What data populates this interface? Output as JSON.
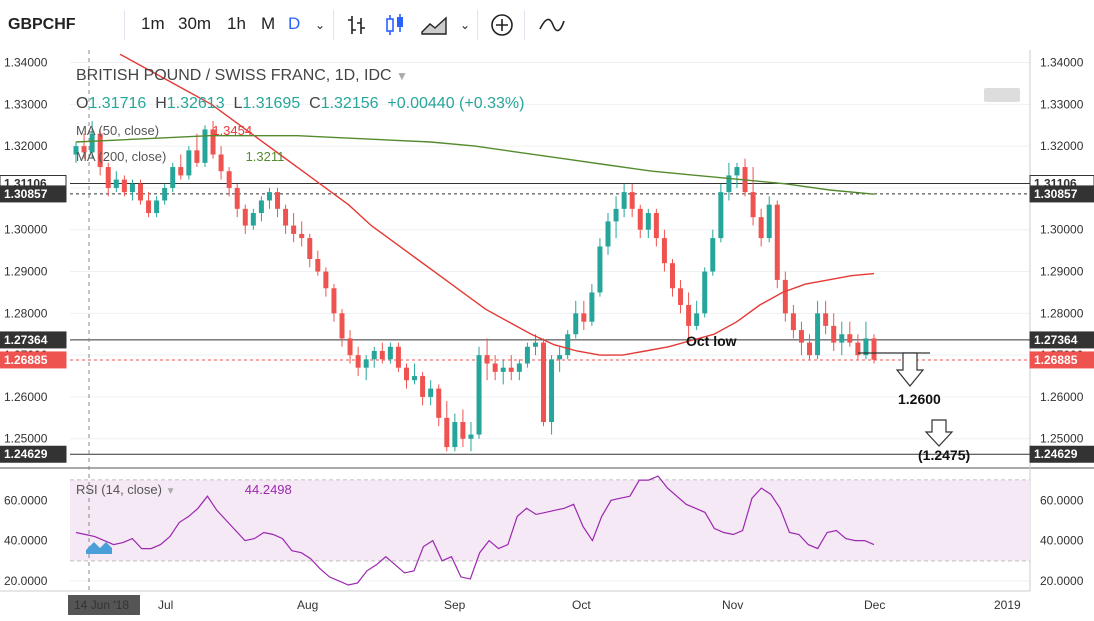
{
  "toolbar": {
    "symbol": "GBPCHF",
    "timeframes": [
      "1m",
      "30m",
      "1h",
      "M",
      "D"
    ],
    "active_timeframe": "D",
    "icons": [
      "chevron-down-icon",
      "bars-icon",
      "candles-icon",
      "area-icon",
      "chevron-down-icon",
      "compare-plus-icon",
      "indicators-icon"
    ]
  },
  "legend": {
    "title": "BRITISH POUND / SWISS FRANC, 1D, IDC",
    "open_label": "O",
    "open": "1.31716",
    "high_label": "H",
    "high": "1.32613",
    "low_label": "L",
    "low": "1.31695",
    "close_label": "C",
    "close": "1.32156",
    "change": "+0.00440 (+0.33%)",
    "ma50_label": "MA (50, close)",
    "ma50_value": "1.3454",
    "ma200_label": "MA (200, close)",
    "ma200_value": "1.3211",
    "rsi_label": "RSI (14, close)",
    "rsi_value": "44.2498"
  },
  "colors": {
    "up": "#26a69a",
    "down": "#ef5350",
    "ma50": "#e53935",
    "ma200": "#558b2f",
    "rsi": "#9c27b0",
    "rsi_band": "#f3e5f5"
  },
  "annotations": {
    "oct_low": "Oct low",
    "target1": "1.2600",
    "target2": "(1.2475)"
  },
  "price_boxes": {
    "current": "1.26885",
    "level_top": "1.31106",
    "level_1": "1.30857",
    "level_2": "1.27364",
    "level_3": "1.24629"
  },
  "chart_data": {
    "type": "candlestick",
    "title": "BRITISH POUND / SWISS FRANC, 1D, IDC",
    "y_range": [
      1.243,
      1.343
    ],
    "y_ticks": [
      "1.34000",
      "1.33000",
      "1.32000",
      "1.31000",
      "1.30000",
      "1.29000",
      "1.28000",
      "1.27000",
      "1.26000",
      "1.25000"
    ],
    "x_labels": [
      "14 Jun '18",
      "Jul",
      "Aug",
      "Sep",
      "Oct",
      "Nov",
      "Dec",
      "2019"
    ],
    "horizontal_levels": [
      1.31106,
      1.30857,
      1.27364,
      1.26885,
      1.24629
    ],
    "candles": [
      [
        1.318,
        1.321,
        1.316,
        1.32
      ],
      [
        1.32,
        1.323,
        1.317,
        1.3185
      ],
      [
        1.3185,
        1.326,
        1.317,
        1.323
      ],
      [
        1.323,
        1.324,
        1.313,
        1.315
      ],
      [
        1.315,
        1.316,
        1.308,
        1.31
      ],
      [
        1.31,
        1.314,
        1.309,
        1.312
      ],
      [
        1.312,
        1.313,
        1.308,
        1.309
      ],
      [
        1.309,
        1.312,
        1.307,
        1.311
      ],
      [
        1.311,
        1.312,
        1.306,
        1.307
      ],
      [
        1.307,
        1.309,
        1.303,
        1.304
      ],
      [
        1.304,
        1.308,
        1.303,
        1.307
      ],
      [
        1.307,
        1.311,
        1.306,
        1.31
      ],
      [
        1.31,
        1.316,
        1.309,
        1.315
      ],
      [
        1.315,
        1.318,
        1.312,
        1.313
      ],
      [
        1.313,
        1.32,
        1.312,
        1.319
      ],
      [
        1.319,
        1.323,
        1.315,
        1.316
      ],
      [
        1.316,
        1.325,
        1.315,
        1.324
      ],
      [
        1.324,
        1.326,
        1.317,
        1.318
      ],
      [
        1.318,
        1.32,
        1.312,
        1.314
      ],
      [
        1.314,
        1.315,
        1.308,
        1.31
      ],
      [
        1.31,
        1.311,
        1.303,
        1.305
      ],
      [
        1.305,
        1.306,
        1.299,
        1.301
      ],
      [
        1.301,
        1.305,
        1.3,
        1.304
      ],
      [
        1.304,
        1.308,
        1.302,
        1.307
      ],
      [
        1.307,
        1.31,
        1.305,
        1.309
      ],
      [
        1.309,
        1.31,
        1.303,
        1.305
      ],
      [
        1.305,
        1.306,
        1.299,
        1.301
      ],
      [
        1.301,
        1.304,
        1.297,
        1.299
      ],
      [
        1.299,
        1.302,
        1.296,
        1.298
      ],
      [
        1.298,
        1.299,
        1.291,
        1.293
      ],
      [
        1.293,
        1.295,
        1.289,
        1.29
      ],
      [
        1.29,
        1.291,
        1.284,
        1.286
      ],
      [
        1.286,
        1.287,
        1.278,
        1.28
      ],
      [
        1.28,
        1.281,
        1.272,
        1.274
      ],
      [
        1.274,
        1.276,
        1.268,
        1.27
      ],
      [
        1.27,
        1.272,
        1.265,
        1.267
      ],
      [
        1.267,
        1.27,
        1.264,
        1.269
      ],
      [
        1.269,
        1.272,
        1.267,
        1.271
      ],
      [
        1.271,
        1.273,
        1.268,
        1.269
      ],
      [
        1.269,
        1.273,
        1.268,
        1.272
      ],
      [
        1.272,
        1.273,
        1.266,
        1.267
      ],
      [
        1.267,
        1.268,
        1.262,
        1.264
      ],
      [
        1.264,
        1.268,
        1.263,
        1.265
      ],
      [
        1.265,
        1.266,
        1.258,
        1.26
      ],
      [
        1.26,
        1.264,
        1.258,
        1.262
      ],
      [
        1.262,
        1.263,
        1.253,
        1.255
      ],
      [
        1.255,
        1.259,
        1.247,
        1.248
      ],
      [
        1.248,
        1.256,
        1.247,
        1.254
      ],
      [
        1.254,
        1.257,
        1.248,
        1.25
      ],
      [
        1.25,
        1.254,
        1.247,
        1.251
      ],
      [
        1.251,
        1.272,
        1.25,
        1.27
      ],
      [
        1.27,
        1.274,
        1.264,
        1.268
      ],
      [
        1.268,
        1.27,
        1.264,
        1.266
      ],
      [
        1.266,
        1.269,
        1.263,
        1.267
      ],
      [
        1.267,
        1.27,
        1.264,
        1.266
      ],
      [
        1.266,
        1.269,
        1.264,
        1.268
      ],
      [
        1.268,
        1.273,
        1.267,
        1.272
      ],
      [
        1.272,
        1.275,
        1.27,
        1.273
      ],
      [
        1.273,
        1.274,
        1.253,
        1.254
      ],
      [
        1.254,
        1.27,
        1.251,
        1.269
      ],
      [
        1.269,
        1.272,
        1.266,
        1.27
      ],
      [
        1.27,
        1.276,
        1.269,
        1.275
      ],
      [
        1.275,
        1.283,
        1.274,
        1.28
      ],
      [
        1.28,
        1.283,
        1.276,
        1.278
      ],
      [
        1.278,
        1.287,
        1.277,
        1.285
      ],
      [
        1.285,
        1.298,
        1.284,
        1.296
      ],
      [
        1.296,
        1.304,
        1.294,
        1.302
      ],
      [
        1.302,
        1.308,
        1.298,
        1.305
      ],
      [
        1.305,
        1.311,
        1.303,
        1.309
      ],
      [
        1.309,
        1.311,
        1.303,
        1.305
      ],
      [
        1.305,
        1.306,
        1.298,
        1.3
      ],
      [
        1.3,
        1.305,
        1.298,
        1.304
      ],
      [
        1.304,
        1.305,
        1.296,
        1.298
      ],
      [
        1.298,
        1.3,
        1.29,
        1.292
      ],
      [
        1.292,
        1.293,
        1.284,
        1.286
      ],
      [
        1.286,
        1.288,
        1.28,
        1.282
      ],
      [
        1.282,
        1.285,
        1.274,
        1.277
      ],
      [
        1.277,
        1.283,
        1.276,
        1.28
      ],
      [
        1.28,
        1.291,
        1.279,
        1.29
      ],
      [
        1.29,
        1.3,
        1.289,
        1.298
      ],
      [
        1.298,
        1.311,
        1.297,
        1.309
      ],
      [
        1.309,
        1.316,
        1.307,
        1.313
      ],
      [
        1.313,
        1.316,
        1.31,
        1.315
      ],
      [
        1.315,
        1.317,
        1.308,
        1.309
      ],
      [
        1.309,
        1.315,
        1.301,
        1.303
      ],
      [
        1.303,
        1.305,
        1.296,
        1.298
      ],
      [
        1.298,
        1.308,
        1.297,
        1.306
      ],
      [
        1.306,
        1.307,
        1.286,
        1.288
      ],
      [
        1.288,
        1.29,
        1.278,
        1.28
      ],
      [
        1.28,
        1.282,
        1.274,
        1.276
      ],
      [
        1.276,
        1.278,
        1.27,
        1.273
      ],
      [
        1.273,
        1.275,
        1.269,
        1.27
      ],
      [
        1.27,
        1.283,
        1.269,
        1.28
      ],
      [
        1.28,
        1.283,
        1.275,
        1.277
      ],
      [
        1.277,
        1.28,
        1.271,
        1.273
      ],
      [
        1.273,
        1.278,
        1.27,
        1.275
      ],
      [
        1.275,
        1.278,
        1.272,
        1.273
      ],
      [
        1.273,
        1.275,
        1.269,
        1.27
      ],
      [
        1.27,
        1.278,
        1.269,
        1.274
      ],
      [
        1.274,
        1.275,
        1.268,
        1.2689
      ]
    ],
    "ma50": [
      1.342,
      1.339,
      1.336,
      1.333,
      1.33,
      1.326,
      1.322,
      1.318,
      1.314,
      1.31,
      1.306,
      1.301,
      1.297,
      1.293,
      1.289,
      1.285,
      1.281,
      1.278,
      1.275,
      1.2725,
      1.271,
      1.27,
      1.27,
      1.271,
      1.272,
      1.2735,
      1.275,
      1.278,
      1.282,
      1.285,
      1.287,
      1.288,
      1.289,
      1.2895
    ],
    "ma200": [
      1.321,
      1.3215,
      1.322,
      1.3225,
      1.3225,
      1.3225,
      1.322,
      1.3215,
      1.321,
      1.32,
      1.3185,
      1.317,
      1.3155,
      1.314,
      1.313,
      1.312,
      1.311,
      1.3095,
      1.3085
    ],
    "rsi": [
      44,
      43,
      42,
      40,
      38,
      39,
      41,
      36,
      36,
      38,
      42,
      49,
      52,
      56,
      62,
      55,
      50,
      45,
      40,
      41,
      44,
      43,
      41,
      35,
      34,
      31,
      26,
      22,
      20,
      18,
      19,
      25,
      28,
      32,
      28,
      24,
      25,
      37,
      40,
      30,
      32,
      22,
      21,
      34,
      40,
      36,
      38,
      52,
      56,
      53,
      54,
      55,
      56,
      58,
      47,
      40,
      52,
      60,
      61,
      62,
      70,
      70,
      72,
      66,
      62,
      58,
      56,
      54,
      46,
      44,
      43,
      45,
      61,
      66,
      63,
      56,
      44,
      43,
      38,
      36,
      44,
      45,
      41,
      40,
      40,
      38
    ],
    "rsi_range": [
      15,
      75
    ],
    "rsi_ticks": [
      "60.0000",
      "40.0000",
      "20.0000"
    ],
    "rsi_bands": [
      70,
      30
    ]
  }
}
